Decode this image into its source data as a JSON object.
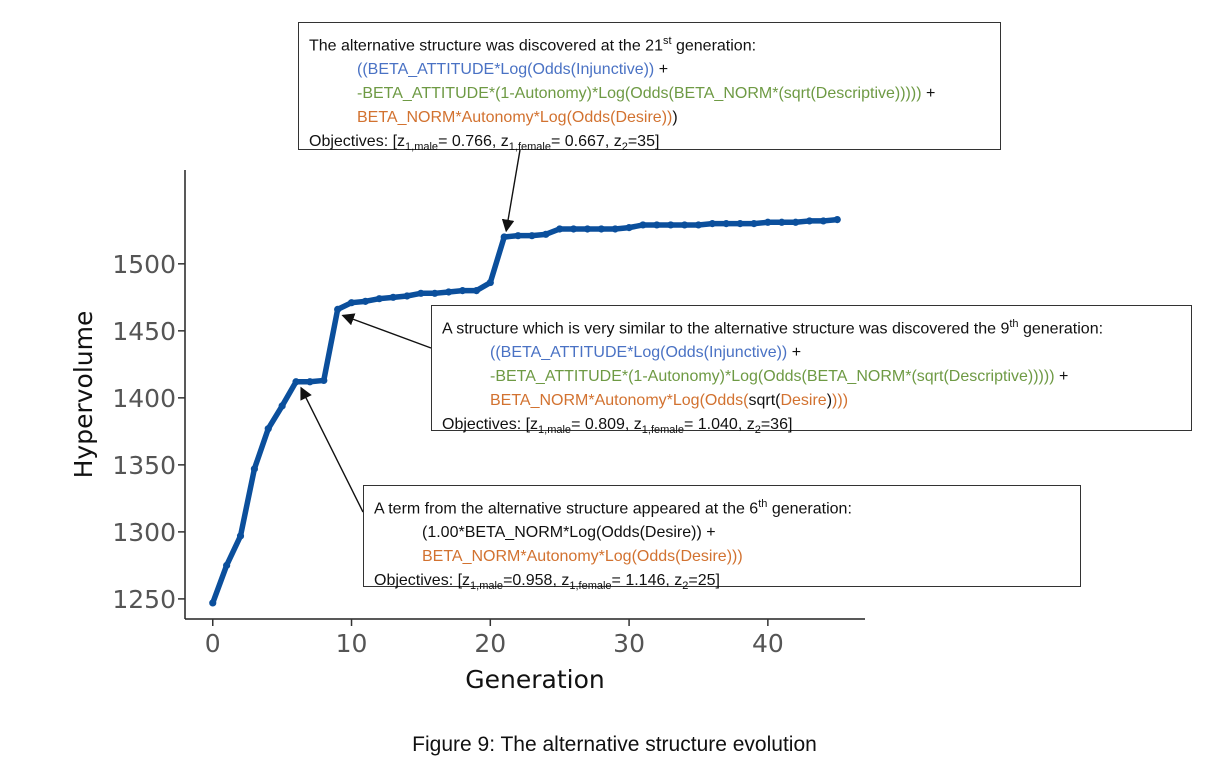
{
  "chart_data": {
    "type": "line",
    "title": "",
    "xlabel": "Generation",
    "ylabel": "Hypervolume",
    "xlim": [
      -2,
      47
    ],
    "ylim": [
      1235,
      1570
    ],
    "xticks": [
      0,
      10,
      20,
      30,
      40
    ],
    "yticks": [
      1250,
      1300,
      1350,
      1400,
      1450,
      1500
    ],
    "grid": false,
    "legend": "none",
    "color": "#0b4f9c",
    "series": [
      {
        "x": [
          0,
          1,
          2,
          3,
          4,
          5,
          6,
          7,
          8,
          9,
          10,
          11,
          12,
          13,
          14,
          15,
          16,
          17,
          18,
          19,
          20,
          21,
          22,
          23,
          24,
          25,
          26,
          27,
          28,
          29,
          30,
          31,
          32,
          33,
          34,
          35,
          36,
          37,
          38,
          39,
          40,
          41,
          42,
          43,
          44,
          45
        ],
        "values": [
          1247,
          1275,
          1297,
          1347,
          1377,
          1394,
          1412,
          1412,
          1413,
          1466,
          1471,
          1472,
          1474,
          1475,
          1476,
          1478,
          1478,
          1479,
          1480,
          1480,
          1486,
          1520,
          1521,
          1521,
          1522,
          1526,
          1526,
          1526,
          1526,
          1526,
          1527,
          1529,
          1529,
          1529,
          1529,
          1529,
          1530,
          1530,
          1530,
          1530,
          1531,
          1531,
          1531,
          1532,
          1532,
          1533
        ]
      }
    ]
  },
  "annotations": [
    {
      "id": "gen21",
      "target": {
        "x": 21,
        "y": 1520
      },
      "lines": [
        {
          "indent": false,
          "segments": [
            {
              "color": "black",
              "text": "The alternative structure was discovered at the 21"
            },
            {
              "color": "black",
              "text": "st",
              "sup": true
            },
            {
              "color": "black",
              "text": " generation:"
            }
          ]
        },
        {
          "indent": true,
          "segments": [
            {
              "color": "blue",
              "text": "((BETA_ATTITUDE*Log(Odds(Injunctive))"
            },
            {
              "color": "black",
              "text": " +"
            }
          ]
        },
        {
          "indent": true,
          "segments": [
            {
              "color": "green",
              "text": "-BETA_ATTITUDE*(1-Autonomy)*Log(Odds(BETA_NORM*(sqrt(Descriptive)))))"
            },
            {
              "color": "black",
              "text": " +"
            }
          ]
        },
        {
          "indent": true,
          "segments": [
            {
              "color": "orange",
              "text": "BETA_NORM*Autonomy*Log(Odds(Desire))"
            },
            {
              "color": "black",
              "text": ")"
            }
          ]
        },
        {
          "indent": false,
          "segments": [
            {
              "color": "black",
              "text": "Objectives: [z"
            },
            {
              "color": "black",
              "text": "1,male",
              "sub": true
            },
            {
              "color": "black",
              "text": "= 0.766, z"
            },
            {
              "color": "black",
              "text": "1,female",
              "sub": true
            },
            {
              "color": "black",
              "text": "= 0.667, z"
            },
            {
              "color": "black",
              "text": "2",
              "sub": true
            },
            {
              "color": "black",
              "text": "=35]"
            }
          ]
        }
      ]
    },
    {
      "id": "gen9",
      "target": {
        "x": 9,
        "y": 1466
      },
      "lines": [
        {
          "indent": false,
          "segments": [
            {
              "color": "black",
              "text": "A structure which is very similar to the alternative structure was discovered the 9"
            },
            {
              "color": "black",
              "text": "th",
              "sup": true
            },
            {
              "color": "black",
              "text": " generation:"
            }
          ]
        },
        {
          "indent": true,
          "segments": [
            {
              "color": "blue",
              "text": "((BETA_ATTITUDE*Log(Odds(Injunctive))"
            },
            {
              "color": "black",
              "text": " +"
            }
          ]
        },
        {
          "indent": true,
          "segments": [
            {
              "color": "green",
              "text": "-BETA_ATTITUDE*(1-Autonomy)*Log(Odds(BETA_NORM*(sqrt(Descriptive)))))"
            },
            {
              "color": "black",
              "text": " +"
            }
          ]
        },
        {
          "indent": true,
          "segments": [
            {
              "color": "orange",
              "text": "BETA_NORM*Autonomy*Log(Odds("
            },
            {
              "color": "black",
              "text": "sqrt("
            },
            {
              "color": "orange",
              "text": "Desire"
            },
            {
              "color": "black",
              "text": ")"
            },
            {
              "color": "orange",
              "text": ")))"
            }
          ]
        },
        {
          "indent": false,
          "segments": [
            {
              "color": "black",
              "text": "Objectives: [z"
            },
            {
              "color": "black",
              "text": "1,male",
              "sub": true
            },
            {
              "color": "black",
              "text": "= 0.809, z"
            },
            {
              "color": "black",
              "text": "1,female",
              "sub": true
            },
            {
              "color": "black",
              "text": "= 1.040, z"
            },
            {
              "color": "black",
              "text": "2",
              "sub": true
            },
            {
              "color": "black",
              "text": "=36]"
            }
          ]
        }
      ]
    },
    {
      "id": "gen6",
      "target": {
        "x": 6,
        "y": 1412
      },
      "lines": [
        {
          "indent": false,
          "segments": [
            {
              "color": "black",
              "text": "A term from the alternative structure appeared at the 6"
            },
            {
              "color": "black",
              "text": "th",
              "sup": true
            },
            {
              "color": "black",
              "text": " generation:"
            }
          ]
        },
        {
          "indent": true,
          "segments": [
            {
              "color": "black",
              "text": "(1.00*BETA_NORM*Log(Odds(Desire)) +"
            }
          ]
        },
        {
          "indent": true,
          "segments": [
            {
              "color": "orange",
              "text": "BETA_NORM*Autonomy*Log(Odds(Desire)))"
            }
          ]
        },
        {
          "indent": false,
          "segments": [
            {
              "color": "black",
              "text": "Objectives: [z"
            },
            {
              "color": "black",
              "text": "1,male",
              "sub": true
            },
            {
              "color": "black",
              "text": "=0.958, z"
            },
            {
              "color": "black",
              "text": "1,female",
              "sub": true
            },
            {
              "color": "black",
              "text": "= 1.146, z"
            },
            {
              "color": "black",
              "text": "2",
              "sub": true
            },
            {
              "color": "black",
              "text": "=25]"
            }
          ]
        }
      ]
    }
  ],
  "caption": "Figure 9: The alternative structure evolution"
}
